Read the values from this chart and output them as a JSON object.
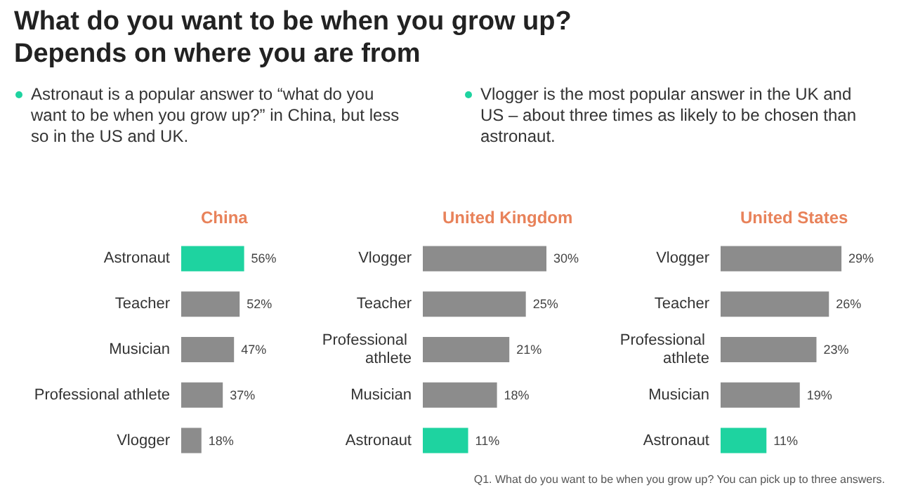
{
  "chart_data": [
    {
      "type": "other",
      "title": "What do you want to be when you grow up? Depends on where you are from",
      "annotations": [
        "Astronaut is a popular answer to “what do you want to be when you grow up?” in China, but less so in the US and UK.",
        "Vlogger is the most popular answer in the UK and US – about three times as likely to be chosen than astronaut.",
        "Q1. What do you want to be when you grow up? You can pick up to three answers."
      ]
    },
    {
      "type": "bar",
      "orientation": "horizontal",
      "title": "China",
      "categories": [
        "Astronaut",
        "Teacher",
        "Musician",
        "Professional athlete",
        "Vlogger"
      ],
      "values": [
        56,
        52,
        47,
        37,
        18
      ],
      "colors": [
        "#1ed3a0",
        "#8c8c8c",
        "#8c8c8c",
        "#8c8c8c",
        "#8c8c8c"
      ],
      "value_labels": [
        "56%",
        "52%",
        "47%",
        "37%",
        "18%"
      ]
    },
    {
      "type": "bar",
      "orientation": "horizontal",
      "title": "United Kingdom",
      "categories": [
        "Vlogger",
        "Teacher",
        "Professional athlete",
        "Musician",
        "Astronaut"
      ],
      "values": [
        30,
        25,
        21,
        18,
        11
      ],
      "colors": [
        "#8c8c8c",
        "#8c8c8c",
        "#8c8c8c",
        "#8c8c8c",
        "#1ed3a0"
      ],
      "value_labels": [
        "30%",
        "25%",
        "21%",
        "18%",
        "11%"
      ]
    },
    {
      "type": "bar",
      "orientation": "horizontal",
      "title": "United States",
      "categories": [
        "Vlogger",
        "Teacher",
        "Professional athlete",
        "Musician",
        "Astronaut"
      ],
      "values": [
        29,
        26,
        23,
        19,
        11
      ],
      "colors": [
        "#8c8c8c",
        "#8c8c8c",
        "#8c8c8c",
        "#8c8c8c",
        "#1ed3a0"
      ],
      "value_labels": [
        "29%",
        "26%",
        "23%",
        "19%",
        "11%"
      ]
    }
  ]
}
